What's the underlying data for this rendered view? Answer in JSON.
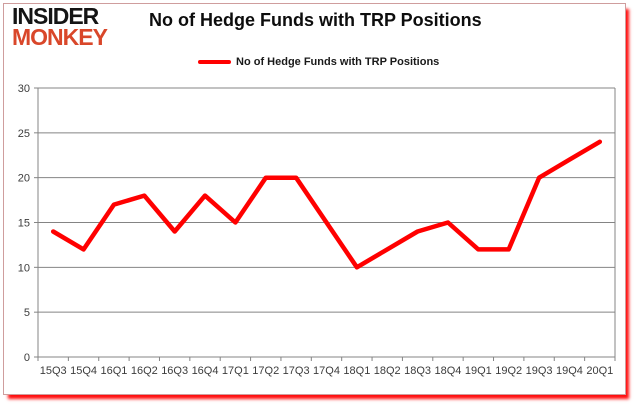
{
  "brand": {
    "line1": "INSIDER",
    "line2": "MONKEY"
  },
  "header": {
    "title": "No of Hedge Funds with TRP Positions"
  },
  "legend": {
    "label": "No of Hedge Funds with TRP Positions"
  },
  "colors": {
    "line": "#ff0000",
    "grid": "#848484",
    "axis_text": "#3c3c3c",
    "brand_black": "#141414",
    "brand_red": "#d9472a",
    "card_border": "#cf9d9d",
    "glow": "#ff0000"
  },
  "chart_data": {
    "type": "line",
    "title": "No of Hedge Funds with TRP Positions",
    "categories": [
      "15Q3",
      "15Q4",
      "16Q1",
      "16Q2",
      "16Q3",
      "16Q4",
      "17Q1",
      "17Q2",
      "17Q3",
      "17Q4",
      "18Q1",
      "18Q2",
      "18Q3",
      "18Q4",
      "19Q1",
      "19Q2",
      "19Q3",
      "19Q4",
      "20Q1"
    ],
    "series": [
      {
        "name": "No of Hedge Funds with TRP Positions",
        "values": [
          14,
          12,
          17,
          18,
          14,
          18,
          15,
          20,
          20,
          15,
          10,
          12,
          14,
          15,
          12,
          12,
          20,
          22,
          24
        ]
      }
    ],
    "xlabel": "",
    "ylabel": "",
    "ylim": [
      0,
      30
    ],
    "yticks": [
      0,
      5,
      10,
      15,
      20,
      25,
      30
    ],
    "grid": true,
    "legend_position": "top-center"
  }
}
